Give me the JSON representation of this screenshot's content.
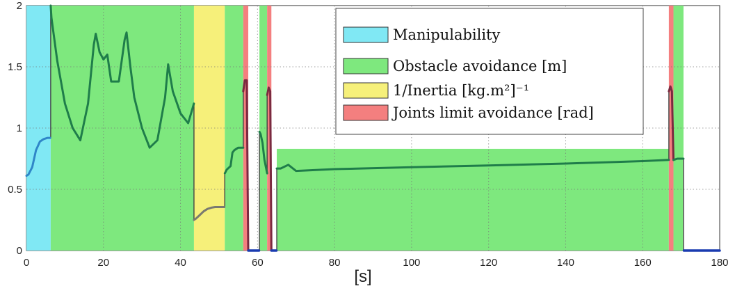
{
  "chart_data": {
    "type": "line",
    "title": "",
    "xlabel": "[s]",
    "ylabel": "",
    "xlim": [
      0,
      180
    ],
    "ylim": [
      0,
      2
    ],
    "xticks": [
      0,
      20,
      40,
      60,
      80,
      100,
      120,
      140,
      160,
      180
    ],
    "yticks": [
      0,
      0.5,
      1,
      1.5,
      2
    ],
    "ytick_labels": [
      "0",
      "0.5",
      "1",
      "1.5",
      "2"
    ],
    "grid": true,
    "legend_position": "top-right",
    "colors": {
      "manipulability": "#80e8f4",
      "obstacle": "#7ee87e",
      "inertia": "#f6f07a",
      "joints": "#f47f7f",
      "curve": "#1f7d4a",
      "zero_line": "#1a3bb0",
      "inertia_curve": "#7a7a70",
      "joint_curve": "#7a2a40"
    },
    "legend": [
      {
        "key": "manipulability",
        "label": "Manipulability",
        "color": "#80e8f4"
      },
      {
        "key": "obstacle",
        "label": "Obstacle avoidance [m]",
        "color": "#7ee87e"
      },
      {
        "key": "inertia",
        "label": "1/Inertia [kg.m²]⁻¹",
        "color": "#f6f07a"
      },
      {
        "key": "joints",
        "label": "Joints limit avoidance [rad]",
        "color": "#f47f7f"
      }
    ],
    "regions": [
      {
        "criterion": "manipulability",
        "x0": 0,
        "x1": 6.3,
        "y1": 2
      },
      {
        "criterion": "obstacle",
        "x0": 6.3,
        "x1": 43.5,
        "y1": 2
      },
      {
        "criterion": "inertia",
        "x0": 43.5,
        "x1": 51.5,
        "y1": 2
      },
      {
        "criterion": "obstacle",
        "x0": 51.5,
        "x1": 56.3,
        "y1": 2
      },
      {
        "criterion": "joints",
        "x0": 56.3,
        "x1": 57.6,
        "y1": 2
      },
      {
        "criterion": "obstacle",
        "x0": 60.5,
        "x1": 62.5,
        "y1": 2
      },
      {
        "criterion": "joints",
        "x0": 62.5,
        "x1": 63.6,
        "y1": 2
      },
      {
        "criterion": "obstacle",
        "x0": 65,
        "x1": 166.8,
        "y1": 0.83
      },
      {
        "criterion": "joints",
        "x0": 166.8,
        "x1": 168,
        "y1": 2
      },
      {
        "criterion": "obstacle",
        "x0": 168,
        "x1": 170.6,
        "y1": 2
      }
    ],
    "series": [
      {
        "style": "manipulability",
        "x": [
          0,
          0.5,
          1.5,
          2.5,
          3.5,
          4.5,
          5.5,
          6.2
        ],
        "y": [
          0.61,
          0.62,
          0.68,
          0.82,
          0.89,
          0.91,
          0.92,
          0.92
        ]
      },
      {
        "style": "curve",
        "x": [
          6.3,
          6.5,
          8,
          10,
          12,
          14,
          16,
          17.5,
          18,
          19,
          20,
          21,
          22,
          24,
          25.5,
          26,
          27,
          28,
          30,
          32,
          34,
          36,
          36.8,
          38,
          40,
          42,
          43.5
        ],
        "y": [
          2.0,
          1.9,
          1.55,
          1.2,
          1.0,
          0.9,
          1.2,
          1.68,
          1.77,
          1.62,
          1.56,
          1.6,
          1.38,
          1.38,
          1.72,
          1.78,
          1.5,
          1.25,
          1.0,
          0.84,
          0.9,
          1.25,
          1.52,
          1.3,
          1.12,
          1.04,
          1.2
        ]
      },
      {
        "style": "inertia_curve",
        "x": [
          43.5,
          44,
          45,
          46,
          47,
          48,
          49,
          50,
          51.4
        ],
        "y": [
          0.25,
          0.26,
          0.29,
          0.32,
          0.34,
          0.35,
          0.355,
          0.355,
          0.355
        ]
      },
      {
        "style": "curve",
        "x": [
          51.5,
          52,
          53,
          53.5,
          54,
          55,
          56,
          56.3
        ],
        "y": [
          0.63,
          0.66,
          0.69,
          0.8,
          0.82,
          0.84,
          0.84,
          0.84
        ]
      },
      {
        "style": "joint_curve",
        "x": [
          56.3,
          56.7,
          57.2,
          57.6
        ],
        "y": [
          1.3,
          1.39,
          1.39,
          0.0
        ]
      },
      {
        "style": "curve",
        "x": [
          60.5,
          60.8,
          61.3,
          61.8,
          62.5
        ],
        "y": [
          0.97,
          0.95,
          0.88,
          0.74,
          0.63
        ]
      },
      {
        "style": "joint_curve",
        "x": [
          62.5,
          62.9,
          63.3,
          63.6
        ],
        "y": [
          1.27,
          1.33,
          1.3,
          0.0
        ]
      },
      {
        "style": "curve",
        "x": [
          65,
          66,
          68,
          70,
          80,
          100,
          120,
          140,
          160,
          166.8
        ],
        "y": [
          0.67,
          0.67,
          0.7,
          0.65,
          0.665,
          0.68,
          0.695,
          0.71,
          0.73,
          0.74
        ]
      },
      {
        "style": "joint_curve",
        "x": [
          166.8,
          167.2,
          167.6,
          168
        ],
        "y": [
          1.3,
          1.34,
          1.3,
          0.74
        ]
      },
      {
        "style": "curve",
        "x": [
          168,
          169,
          170.6
        ],
        "y": [
          0.74,
          0.75,
          0.75
        ]
      },
      {
        "style": "zero_line",
        "x": [
          57.6,
          60.4
        ],
        "y": [
          0.0,
          0.0
        ]
      },
      {
        "style": "zero_line",
        "x": [
          63.6,
          64.9
        ],
        "y": [
          0.0,
          0.0
        ]
      },
      {
        "style": "zero_line",
        "x": [
          170.7,
          180
        ],
        "y": [
          0.0,
          0.0
        ]
      }
    ],
    "transitions": [
      {
        "x": 6.3,
        "from": 0.92,
        "to": 2.0
      },
      {
        "x": 43.5,
        "from": 1.2,
        "to": 0.25
      },
      {
        "x": 51.5,
        "from": 0.355,
        "to": 0.63
      },
      {
        "x": 56.3,
        "from": 0.84,
        "to": 1.3
      },
      {
        "x": 60.5,
        "from": 0.0,
        "to": 0.97
      },
      {
        "x": 62.5,
        "from": 0.63,
        "to": 1.27
      },
      {
        "x": 65,
        "from": 0.0,
        "to": 0.67
      },
      {
        "x": 166.8,
        "from": 0.74,
        "to": 1.3
      },
      {
        "x": 170.6,
        "from": 0.75,
        "to": 0.0
      }
    ]
  }
}
